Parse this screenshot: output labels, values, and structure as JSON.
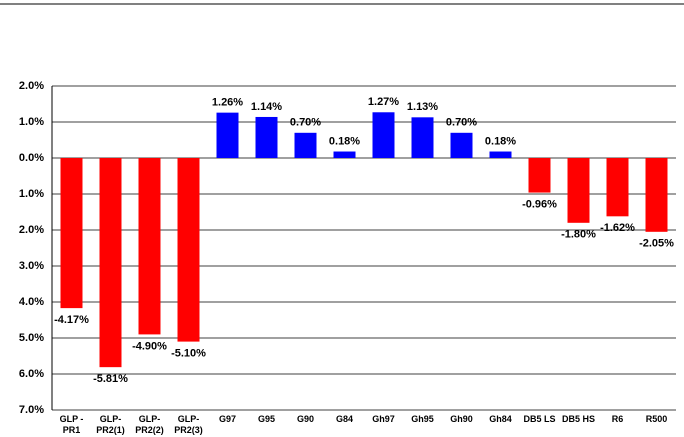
{
  "chart_data": {
    "type": "bar",
    "categories": [
      "GLP - PR1",
      "GLP- PR2(1)",
      "GLP- PR2(2)",
      "GLP- PR2(3)",
      "G97",
      "G95",
      "G90",
      "G84",
      "Gh97",
      "Gh95",
      "Gh90",
      "Gh84",
      "DB5 LS",
      "DB5 HS",
      "R6",
      "R500"
    ],
    "values": [
      -4.17,
      -5.81,
      -4.9,
      -5.1,
      1.26,
      1.14,
      0.7,
      0.18,
      1.27,
      1.13,
      0.7,
      0.18,
      -0.96,
      -1.8,
      -1.62,
      -2.05
    ],
    "value_labels": [
      "-4.17%",
      "-5.81%",
      "-4.90%",
      "-5.10%",
      "1.26%",
      "1.14%",
      "0.70%",
      "0.18%",
      "1.27%",
      "1.13%",
      "0.70%",
      "0.18%",
      "-0.96%",
      "-1.80%",
      "-1.62%",
      "-2.05%"
    ],
    "colors": [
      "#ff0000",
      "#ff0000",
      "#ff0000",
      "#ff0000",
      "#0000ff",
      "#0000ff",
      "#0000ff",
      "#0000ff",
      "#0000ff",
      "#0000ff",
      "#0000ff",
      "#0000ff",
      "#ff0000",
      "#ff0000",
      "#ff0000",
      "#ff0000"
    ],
    "ylim": [
      -7,
      2
    ],
    "yticks": [
      {
        "value": 2,
        "label": "2.0%"
      },
      {
        "value": 1,
        "label": "1.0%"
      },
      {
        "value": 0,
        "label": "0.0%"
      },
      {
        "value": -1,
        "label": "1.0%"
      },
      {
        "value": -2,
        "label": "2.0%"
      },
      {
        "value": -3,
        "label": "3.0%"
      },
      {
        "value": -4,
        "label": "4.0%"
      },
      {
        "value": -5,
        "label": "5.0%"
      },
      {
        "value": -6,
        "label": "6.0%"
      },
      {
        "value": -7,
        "label": "7.0%"
      }
    ],
    "grid": true
  }
}
